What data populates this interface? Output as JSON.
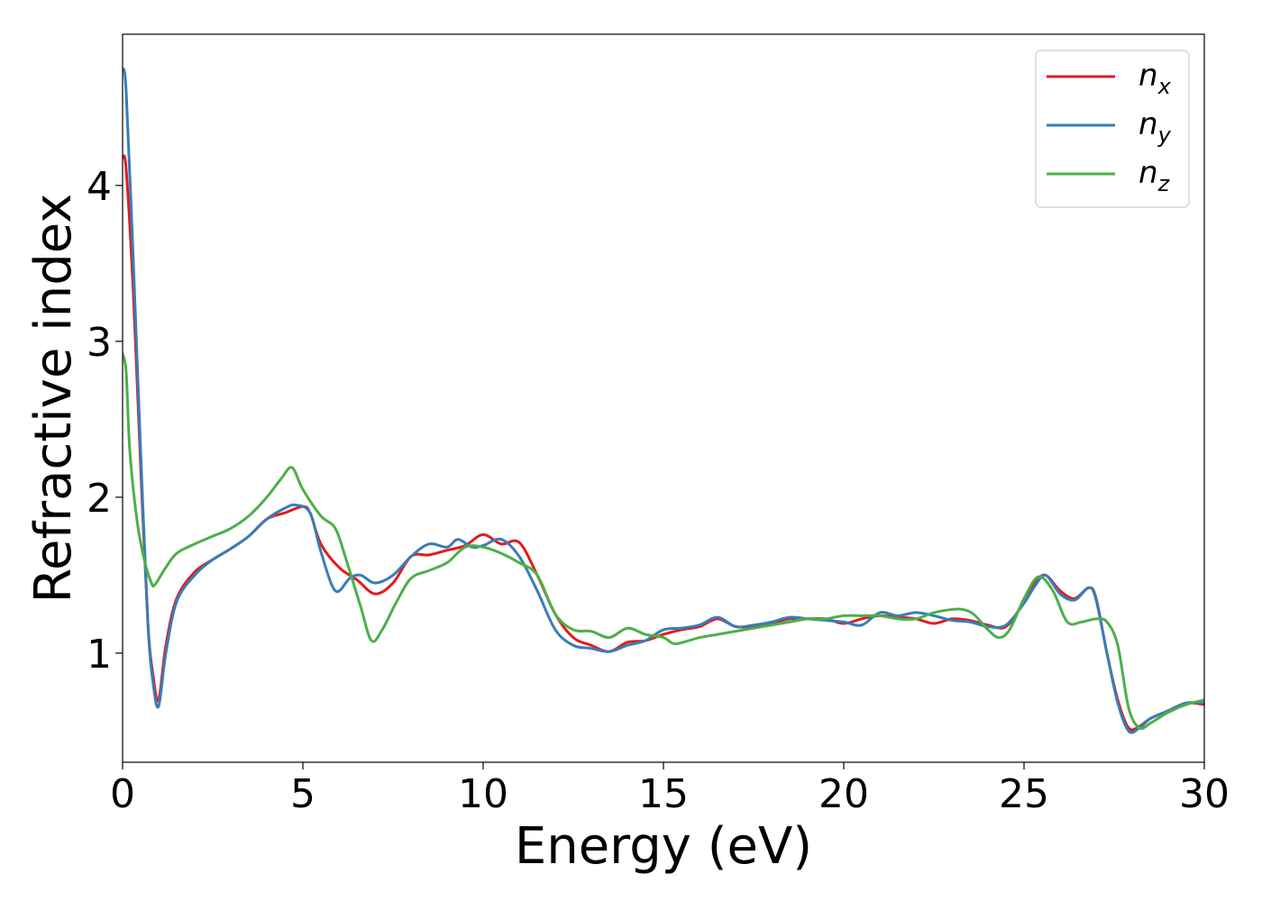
{
  "chart_data": {
    "type": "line",
    "xlabel": "Energy (eV)",
    "ylabel": "Refractive index",
    "xlim": [
      0,
      30
    ],
    "ylim": [
      0.3,
      4.97
    ],
    "xticks": [
      0,
      5,
      10,
      15,
      20,
      25,
      30
    ],
    "yticks": [
      1,
      2,
      3,
      4
    ],
    "grid": false,
    "legend_position": "top-right",
    "series": [
      {
        "name": "n_x",
        "label_base": "n",
        "label_sub": "x",
        "color": "#e41a1c",
        "x": [
          0,
          0.1,
          0.3,
          0.5,
          0.7,
          0.85,
          1.0,
          1.2,
          1.5,
          2,
          2.5,
          3,
          3.5,
          4,
          4.5,
          5,
          5.2,
          5.5,
          6,
          6.5,
          7,
          7.5,
          8,
          8.5,
          9,
          9.5,
          10,
          10.5,
          11,
          11.5,
          12,
          12.5,
          13,
          13.5,
          14,
          14.5,
          15,
          15.5,
          16,
          16.5,
          17,
          17.5,
          18,
          18.5,
          19,
          19.5,
          20,
          20.5,
          21,
          21.5,
          22,
          22.5,
          23,
          23.5,
          24,
          24.5,
          25,
          25.3,
          25.6,
          26,
          26.4,
          26.8,
          27,
          27.3,
          27.6,
          27.9,
          28.2,
          28.5,
          29,
          29.5,
          30
        ],
        "y": [
          4.18,
          4.1,
          3.3,
          2.2,
          1.2,
          0.85,
          0.7,
          1.05,
          1.35,
          1.52,
          1.6,
          1.67,
          1.75,
          1.86,
          1.9,
          1.94,
          1.9,
          1.7,
          1.55,
          1.47,
          1.38,
          1.45,
          1.62,
          1.63,
          1.66,
          1.69,
          1.76,
          1.7,
          1.71,
          1.5,
          1.25,
          1.1,
          1.05,
          1.01,
          1.07,
          1.08,
          1.12,
          1.15,
          1.17,
          1.22,
          1.17,
          1.17,
          1.19,
          1.22,
          1.22,
          1.22,
          1.19,
          1.22,
          1.24,
          1.23,
          1.22,
          1.19,
          1.22,
          1.21,
          1.18,
          1.17,
          1.33,
          1.45,
          1.5,
          1.4,
          1.35,
          1.42,
          1.35,
          1.0,
          0.7,
          0.52,
          0.53,
          0.58,
          0.63,
          0.68,
          0.67
        ]
      },
      {
        "name": "n_y",
        "label_base": "n",
        "label_sub": "y",
        "color": "#377eb8",
        "x": [
          0,
          0.1,
          0.3,
          0.5,
          0.7,
          0.85,
          1.0,
          1.2,
          1.5,
          2,
          2.5,
          3,
          3.5,
          4,
          4.5,
          4.8,
          5.2,
          5.5,
          5.9,
          6.3,
          6.6,
          7,
          7.5,
          8,
          8.5,
          9,
          9.3,
          9.7,
          10,
          10.5,
          11,
          11.5,
          12,
          12.5,
          13,
          13.5,
          14,
          14.5,
          15,
          15.5,
          16,
          16.5,
          17,
          17.5,
          18,
          18.5,
          19,
          19.5,
          20,
          20.5,
          21,
          21.5,
          22,
          22.5,
          23,
          23.5,
          24,
          24.5,
          25,
          25.3,
          25.6,
          26,
          26.4,
          26.8,
          27,
          27.3,
          27.6,
          27.9,
          28.2,
          28.5,
          29,
          29.5,
          30
        ],
        "y": [
          4.75,
          4.6,
          3.5,
          2.3,
          1.2,
          0.8,
          0.66,
          1.0,
          1.33,
          1.5,
          1.6,
          1.67,
          1.75,
          1.86,
          1.93,
          1.95,
          1.9,
          1.65,
          1.4,
          1.48,
          1.5,
          1.45,
          1.5,
          1.62,
          1.7,
          1.68,
          1.73,
          1.68,
          1.69,
          1.73,
          1.62,
          1.4,
          1.15,
          1.05,
          1.03,
          1.01,
          1.05,
          1.08,
          1.15,
          1.16,
          1.18,
          1.23,
          1.17,
          1.18,
          1.2,
          1.23,
          1.22,
          1.21,
          1.2,
          1.18,
          1.26,
          1.24,
          1.26,
          1.24,
          1.21,
          1.2,
          1.17,
          1.18,
          1.32,
          1.43,
          1.5,
          1.38,
          1.34,
          1.42,
          1.34,
          1.0,
          0.68,
          0.5,
          0.52,
          0.58,
          0.63,
          0.68,
          0.68
        ]
      },
      {
        "name": "n_z",
        "label_base": "n",
        "label_sub": "z",
        "color": "#4daf4a",
        "x": [
          0,
          0.1,
          0.2,
          0.4,
          0.6,
          0.8,
          0.9,
          1.2,
          1.5,
          2,
          2.5,
          3,
          3.5,
          4,
          4.4,
          4.7,
          5,
          5.5,
          5.9,
          6.2,
          6.6,
          6.9,
          7.2,
          7.6,
          8,
          8.5,
          9,
          9.5,
          10,
          10.5,
          11,
          11.5,
          12,
          12.5,
          13,
          13.5,
          14,
          14.5,
          15,
          15.3,
          15.7,
          16,
          16.5,
          17,
          17.5,
          18,
          18.5,
          19,
          19.5,
          20,
          20.5,
          21,
          21.5,
          22,
          22.5,
          23,
          23.3,
          23.6,
          24,
          24.3,
          24.6,
          25,
          25.4,
          25.8,
          26.2,
          26.6,
          27,
          27.3,
          27.6,
          27.9,
          28.2,
          28.5,
          29,
          29.5,
          30
        ],
        "y": [
          2.92,
          2.8,
          2.3,
          1.85,
          1.6,
          1.45,
          1.44,
          1.55,
          1.64,
          1.7,
          1.75,
          1.8,
          1.88,
          2.0,
          2.12,
          2.19,
          2.05,
          1.88,
          1.8,
          1.6,
          1.3,
          1.08,
          1.15,
          1.33,
          1.48,
          1.53,
          1.58,
          1.68,
          1.68,
          1.64,
          1.58,
          1.5,
          1.25,
          1.15,
          1.14,
          1.1,
          1.16,
          1.12,
          1.1,
          1.06,
          1.08,
          1.1,
          1.12,
          1.14,
          1.16,
          1.18,
          1.2,
          1.22,
          1.22,
          1.24,
          1.24,
          1.24,
          1.22,
          1.22,
          1.26,
          1.28,
          1.28,
          1.25,
          1.15,
          1.1,
          1.15,
          1.35,
          1.49,
          1.4,
          1.2,
          1.2,
          1.22,
          1.2,
          1.05,
          0.65,
          0.52,
          0.55,
          0.62,
          0.67,
          0.7
        ]
      }
    ]
  }
}
